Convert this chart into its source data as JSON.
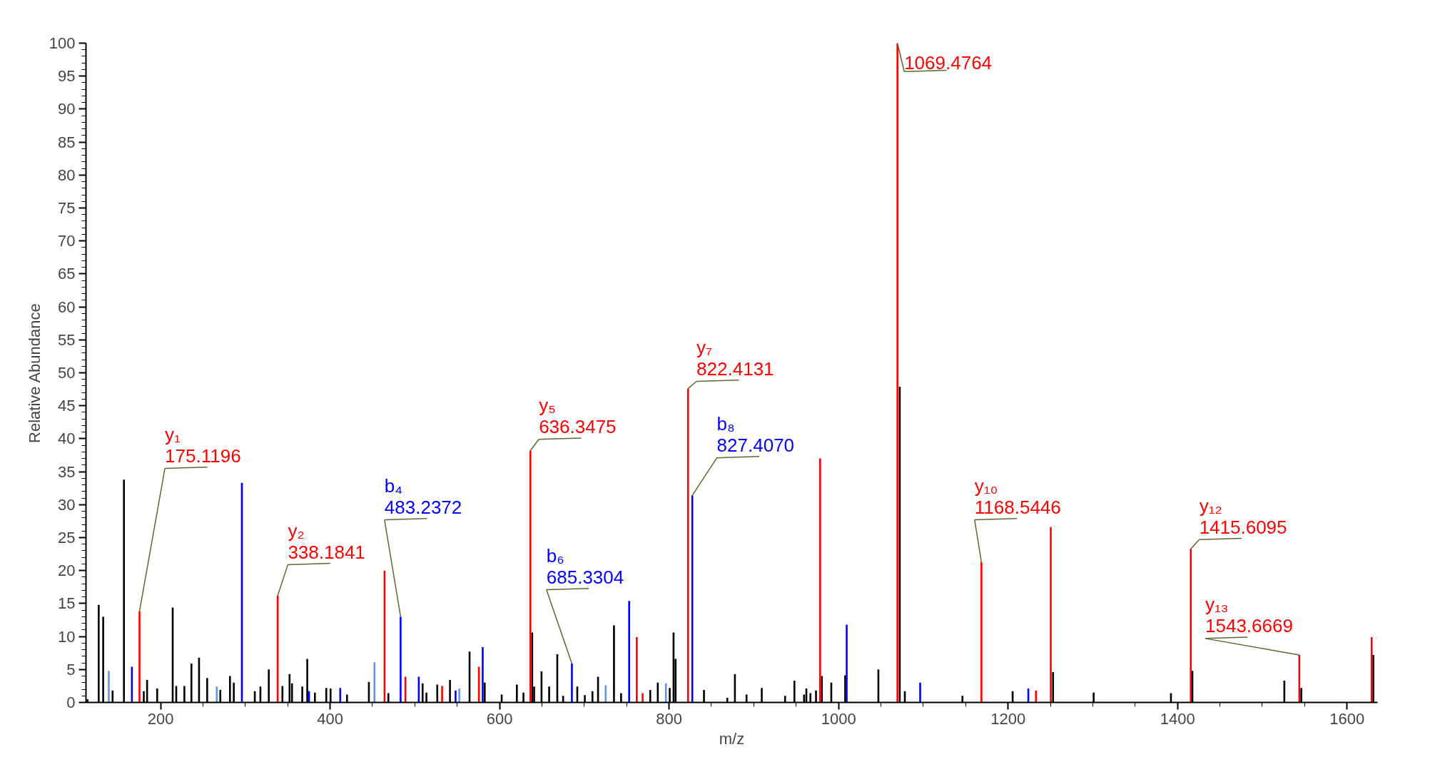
{
  "chart_data": {
    "type": "bar",
    "xlabel": "m/z",
    "ylabel": "Relative Abundance",
    "xlim": [
      112,
      1636
    ],
    "xticks": [
      200,
      400,
      600,
      800,
      1000,
      1200,
      1400,
      1600
    ],
    "ylim": [
      0,
      100
    ],
    "yticks": [
      0,
      5,
      10,
      15,
      20,
      25,
      30,
      35,
      40,
      45,
      50,
      55,
      60,
      65,
      70,
      75,
      80,
      85,
      90,
      95,
      100
    ],
    "grid": false,
    "series": [
      {
        "color": "#000000",
        "x": [
          113.8,
          127,
          132.3,
          143.4,
          156.8,
          180.2,
          184.1,
          196,
          214.3,
          218.5,
          228.1,
          236.4,
          245.4,
          255,
          270.5,
          281.9,
          286.4,
          311.2,
          317.8,
          327.7,
          343.8,
          352.2,
          355.1,
          367.2,
          373.1,
          382.1,
          395.5,
          400.6,
          420,
          445.8,
          468.8,
          509.2,
          513.7,
          526.5,
          541.5,
          564.6,
          582.5,
          602.5,
          620.4,
          628.2,
          638.5,
          640.8,
          649.5,
          658.5,
          668.1,
          675,
          691.7,
          700.6,
          709.6,
          716.2,
          735,
          743.4,
          777.8,
          786.7,
          800.8,
          805.3,
          807.7,
          841.2,
          868.7,
          877.7,
          891.4,
          909.4,
          936.9,
          947.9,
          959.3,
          962,
          966.8,
          973.4,
          980.3,
          991.4,
          1007.8,
          1047,
          1072.2,
          1078.2,
          1146.2,
          1205.4,
          1253.1,
          1301,
          1392.2,
          1417.5,
          1526,
          1546,
          1631
        ],
        "values": [
          0.5,
          14.8,
          13.0,
          1.8,
          33.8,
          1.7,
          3.4,
          2.1,
          14.4,
          2.5,
          2.5,
          5.9,
          6.8,
          3.7,
          1.9,
          4.0,
          3.0,
          1.7,
          2.4,
          5.0,
          2.5,
          4.3,
          2.9,
          2.4,
          6.6,
          1.5,
          2.2,
          2.1,
          1.2,
          3.1,
          1.4,
          2.9,
          1.5,
          2.7,
          3.4,
          7.7,
          3.0,
          1.2,
          2.7,
          1.5,
          10.6,
          2.4,
          4.7,
          2.4,
          7.3,
          1.0,
          2.4,
          1.1,
          1.7,
          3.9,
          11.7,
          1.4,
          1.9,
          3.0,
          2.2,
          10.6,
          6.6,
          1.9,
          0.7,
          4.3,
          1.2,
          2.2,
          1.0,
          3.3,
          1.2,
          2.1,
          1.4,
          1.8,
          4.0,
          3.0,
          4.1,
          5.0,
          47.9,
          1.7,
          1.0,
          1.7,
          4.6,
          1.5,
          1.4,
          4.8,
          3.3,
          2.2,
          7.2
        ]
      },
      {
        "color": "#6495ed",
        "x": [
          138.9,
          266.3,
          452.4,
          552.5,
          725.2,
          796.3
        ],
        "values": [
          4.8,
          2.4,
          6.1,
          2.1,
          2.6,
          2.9
        ]
      },
      {
        "color": "#0000ff",
        "x": [
          166.2,
          296,
          375.2,
          412,
          483.2372,
          504.7,
          548.1,
          580.1,
          685.3304,
          752.9,
          827.407,
          1009.6,
          1096.3,
          1223.9
        ],
        "values": [
          5.4,
          33.3,
          1.7,
          2.2,
          13.0,
          3.9,
          1.8,
          8.4,
          5.9,
          15.4,
          31.4,
          11.8,
          3.0,
          2.1
        ]
      },
      {
        "color": "#ff0000",
        "x": [
          175.1196,
          338.1841,
          464.3,
          488.9,
          532.2,
          575.6,
          636.3475,
          761.9,
          768.8,
          822.4131,
          978.2,
          1069.4764,
          1168.5446,
          1232.9,
          1250.4,
          1415.6095,
          1543.6669,
          1629
        ],
        "values": [
          13.8,
          16.2,
          20.0,
          3.9,
          2.5,
          5.4,
          38.2,
          9.9,
          1.4,
          47.6,
          37.0,
          100,
          21.3,
          1.8,
          26.6,
          23.3,
          7.2,
          9.9
        ]
      }
    ],
    "annotations": [
      {
        "text": "y₁\n175.1196",
        "x": 175.1196,
        "y": 13.8
      },
      {
        "text": "y₂\n338.1841",
        "x": 338.1841,
        "y": 16.2
      },
      {
        "text": "b₄\n483.2372",
        "x": 483.2372,
        "y": 13.0
      },
      {
        "text": "y₅\n636.3475",
        "x": 636.3475,
        "y": 38.2
      },
      {
        "text": "b₆\n685.3304",
        "x": 685.3304,
        "y": 5.9
      },
      {
        "text": "y₇\n822.4131",
        "x": 822.4131,
        "y": 47.6
      },
      {
        "text": "b₈\n827.4070",
        "x": 827.407,
        "y": 31.4
      },
      {
        "text": "1069.4764",
        "x": 1069.4764,
        "y": 100
      },
      {
        "text": "y₁₀\n1168.5446",
        "x": 1168.5446,
        "y": 21.3
      },
      {
        "text": "y₁₂\n1415.6095",
        "x": 1415.6095,
        "y": 23.3
      },
      {
        "text": "y₁₃\n1543.6669",
        "x": 1543.6669,
        "y": 7.2
      }
    ]
  }
}
